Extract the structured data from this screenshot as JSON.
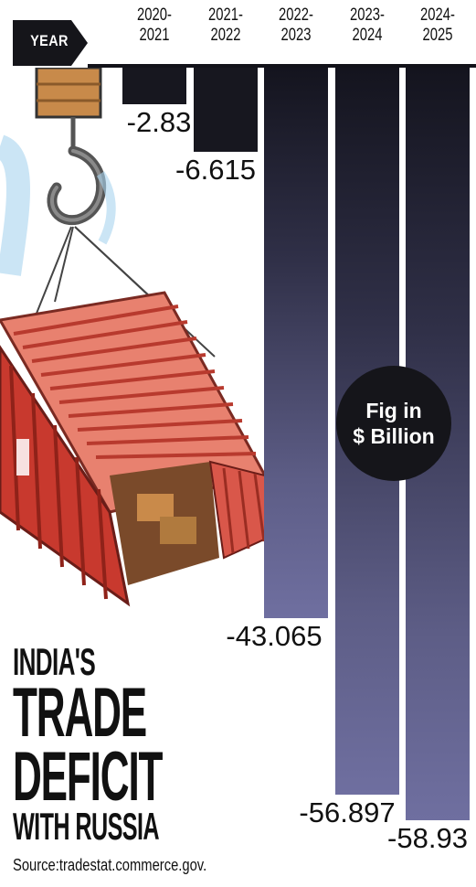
{
  "chart_data": {
    "type": "bar",
    "title_lines": [
      "INDIA'S",
      "TRADE",
      "DEFICIT",
      "WITH RUSSIA"
    ],
    "axis_tag": "YEAR",
    "categories": [
      "2020-\n2021",
      "2021-\n2022",
      "2022-\n2023",
      "2023-\n2024",
      "2024-\n2025"
    ],
    "values": [
      -2.83,
      -6.615,
      -43.065,
      -56.897,
      -58.93
    ],
    "value_labels": [
      "-2.83",
      "-6.615",
      "-43.065",
      "-56.897",
      "-58.93"
    ],
    "unit_note": [
      "Fig in",
      "$ Billion"
    ],
    "source": "Source:tradestat.commerce.gov.",
    "ylim": [
      -60,
      0
    ],
    "bar_color_top": "#14141e",
    "bar_color_bottom": "#6f6fa0"
  }
}
